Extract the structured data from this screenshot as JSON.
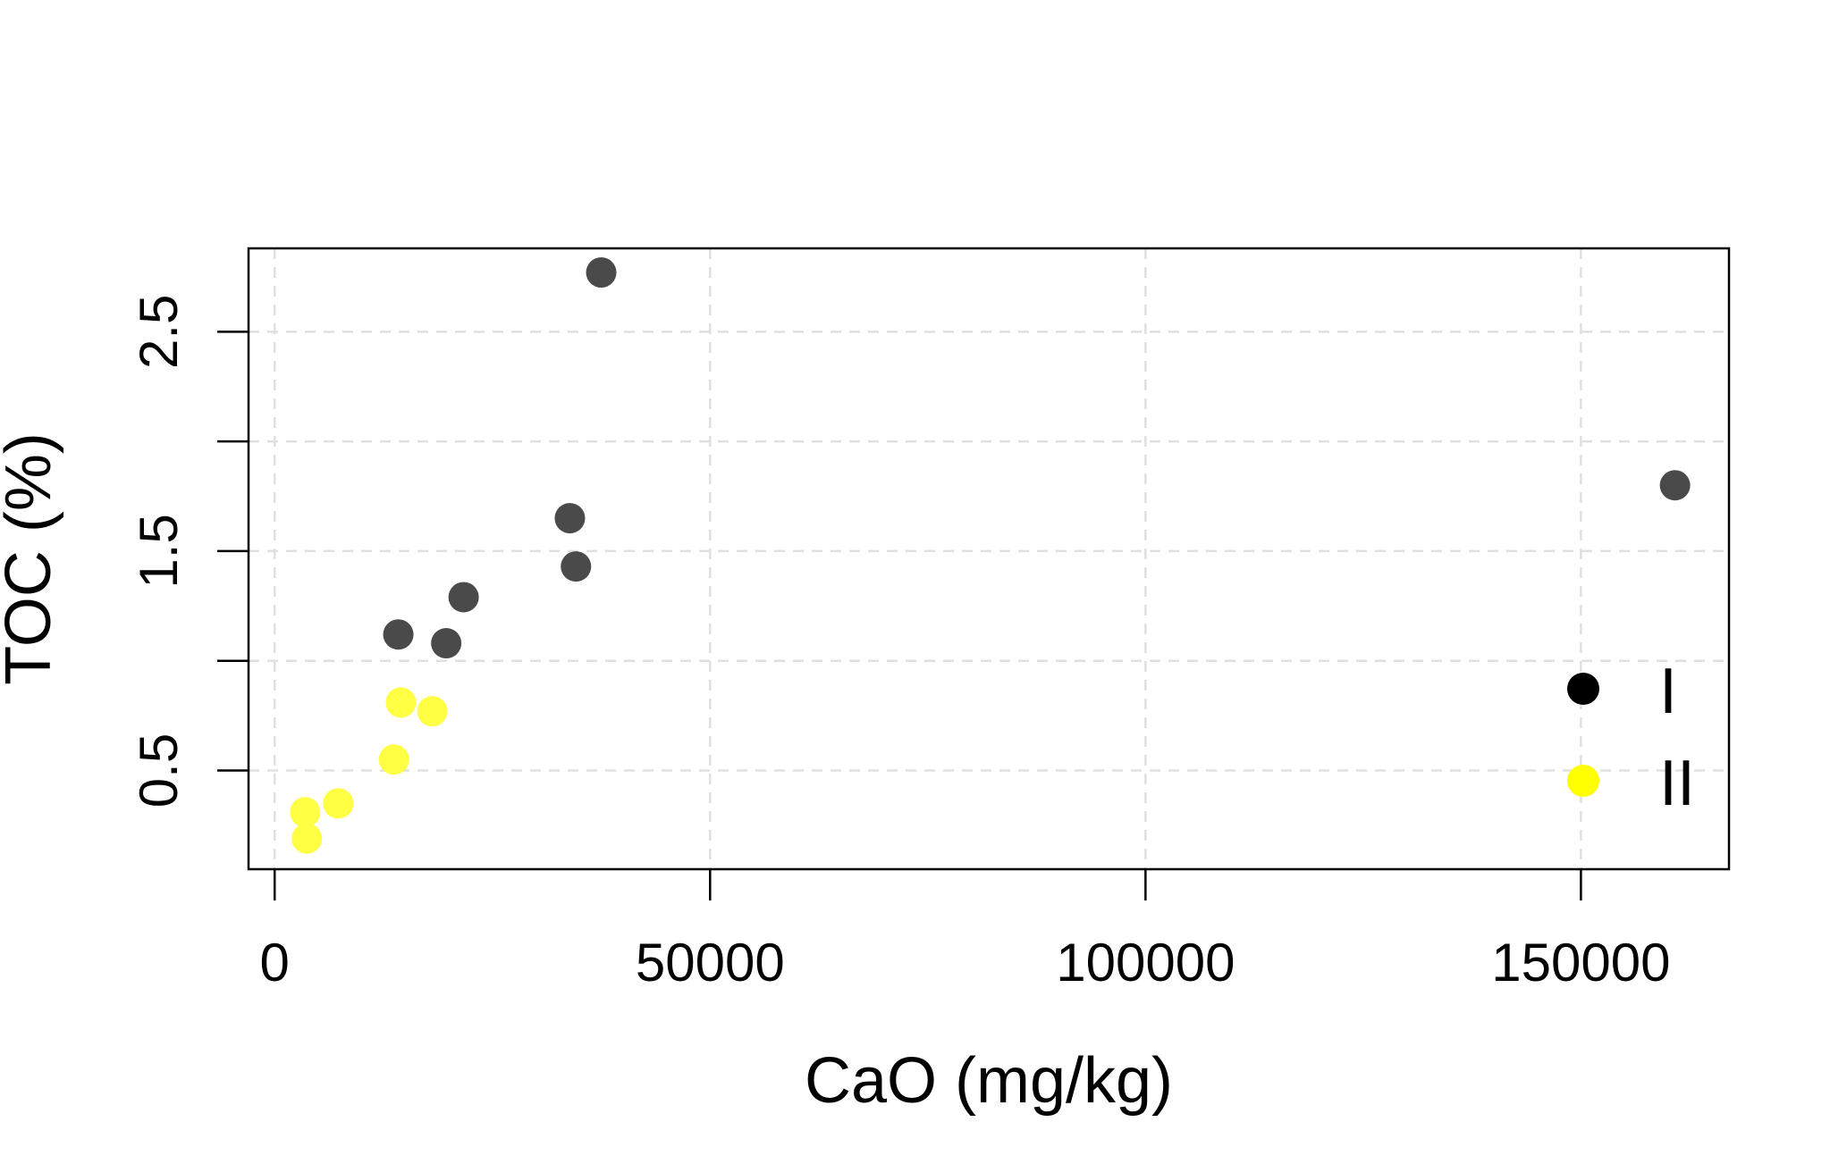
{
  "chart_data": {
    "type": "scatter",
    "title": "",
    "xlabel": "CaO (mg/kg)",
    "ylabel": "TOC (%)",
    "xlim": [
      -3000,
      167000
    ],
    "ylim": [
      0.05,
      2.88
    ],
    "xticks": [
      0,
      50000,
      100000,
      150000
    ],
    "xtick_labels": [
      "0",
      "50000",
      "100000",
      "150000"
    ],
    "yticks": [
      0.5,
      1.0,
      1.5,
      2.0,
      2.5
    ],
    "ytick_labels": [
      "0.5",
      "",
      "1.5",
      "",
      "2.5"
    ],
    "grid": true,
    "legend_position": "right",
    "legend": [
      {
        "label": "I",
        "color": "#000000"
      },
      {
        "label": "II",
        "color": "#ffff00"
      }
    ],
    "series": [
      {
        "name": "I",
        "color": "#4a4a4a",
        "points": [
          {
            "x": 37500,
            "y": 2.77
          },
          {
            "x": 33900,
            "y": 1.65
          },
          {
            "x": 34600,
            "y": 1.43
          },
          {
            "x": 21700,
            "y": 1.29
          },
          {
            "x": 14200,
            "y": 1.12
          },
          {
            "x": 19700,
            "y": 1.08
          },
          {
            "x": 160800,
            "y": 1.8
          }
        ]
      },
      {
        "name": "II",
        "color": "#ffff44",
        "points": [
          {
            "x": 14500,
            "y": 0.81
          },
          {
            "x": 18100,
            "y": 0.77
          },
          {
            "x": 13700,
            "y": 0.55
          },
          {
            "x": 7300,
            "y": 0.35
          },
          {
            "x": 3500,
            "y": 0.31
          },
          {
            "x": 3700,
            "y": 0.19
          }
        ]
      }
    ]
  }
}
